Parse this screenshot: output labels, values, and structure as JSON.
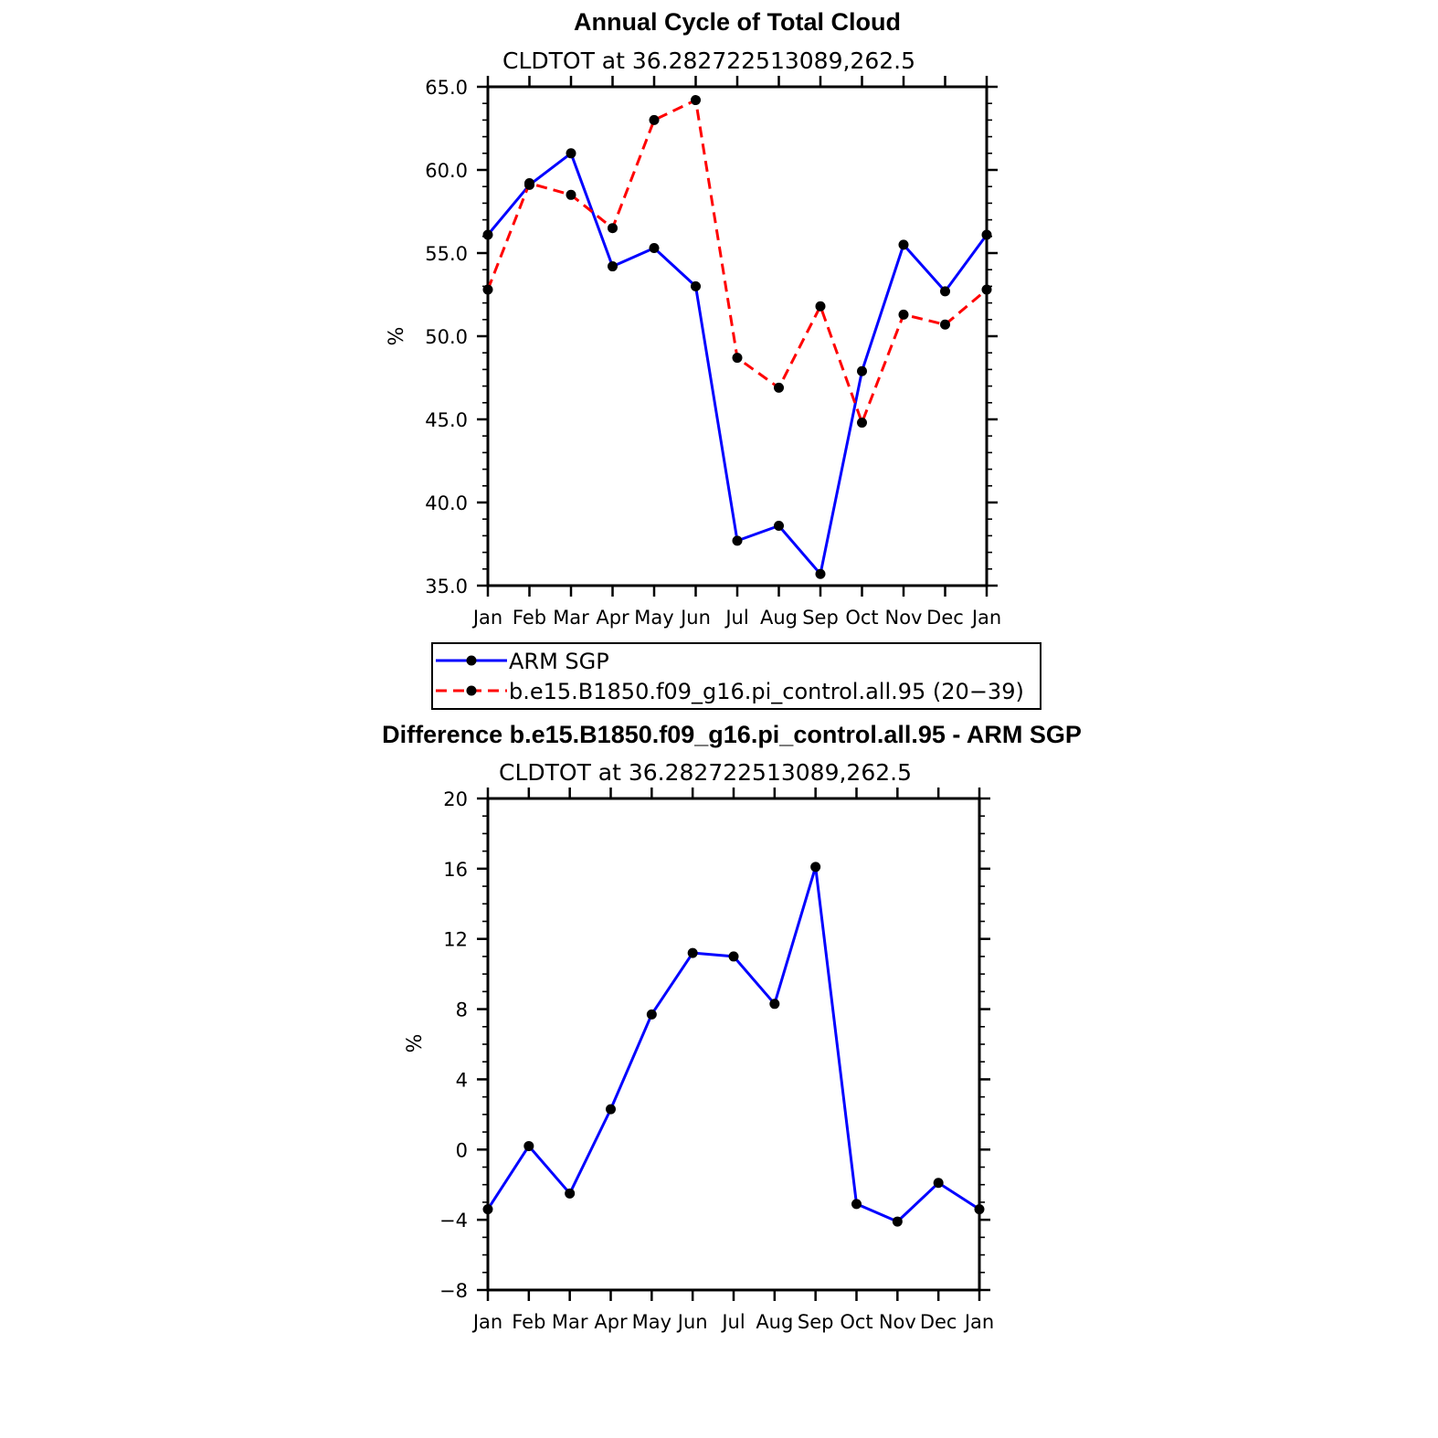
{
  "chart_data": [
    {
      "type": "line",
      "title": "Annual Cycle of Total Cloud",
      "subtitle": "CLDTOT at 36.282722513089,262.5",
      "xlabel": "",
      "ylabel": "%",
      "categories": [
        "Jan",
        "Feb",
        "Mar",
        "Apr",
        "May",
        "Jun",
        "Jul",
        "Aug",
        "Sep",
        "Oct",
        "Nov",
        "Dec",
        "Jan"
      ],
      "ylim": [
        35.0,
        65.0
      ],
      "yticks": [
        "35.0",
        "40.0",
        "45.0",
        "50.0",
        "55.0",
        "60.0",
        "65.0"
      ],
      "ytick_values": [
        35,
        40,
        45,
        50,
        55,
        60,
        65
      ],
      "series": [
        {
          "name": "ARM SGP",
          "color": "#0000ff",
          "dash": "solid",
          "values": [
            56.1,
            59.1,
            61.0,
            54.2,
            55.3,
            53.0,
            37.7,
            38.6,
            35.7,
            47.9,
            55.5,
            52.7,
            56.1
          ]
        },
        {
          "name": "b.e15.B1850.f09_g16.pi_control.all.95 (20−39)",
          "color": "#ff0000",
          "dash": "dashed",
          "values": [
            52.8,
            59.2,
            58.5,
            56.5,
            63.0,
            64.2,
            48.7,
            46.9,
            51.8,
            44.8,
            51.3,
            50.7,
            52.8
          ]
        }
      ],
      "legend": "below"
    },
    {
      "type": "line",
      "title": "Difference b.e15.B1850.f09_g16.pi_control.all.95 - ARM SGP",
      "subtitle": "CLDTOT at 36.282722513089,262.5",
      "xlabel": "",
      "ylabel": "%",
      "categories": [
        "Jan",
        "Feb",
        "Mar",
        "Apr",
        "May",
        "Jun",
        "Jul",
        "Aug",
        "Sep",
        "Oct",
        "Nov",
        "Dec",
        "Jan"
      ],
      "ylim": [
        -8,
        20
      ],
      "yticks": [
        "−8",
        "−4",
        "0",
        "4",
        "8",
        "12",
        "16",
        "20"
      ],
      "ytick_values": [
        -8,
        -4,
        0,
        4,
        8,
        12,
        16,
        20
      ],
      "series": [
        {
          "name": "Difference",
          "color": "#0000ff",
          "dash": "solid",
          "values": [
            -3.4,
            0.2,
            -2.5,
            2.3,
            7.7,
            11.2,
            11.0,
            8.3,
            16.1,
            -3.1,
            -4.1,
            -1.9,
            -3.4
          ]
        }
      ]
    }
  ]
}
